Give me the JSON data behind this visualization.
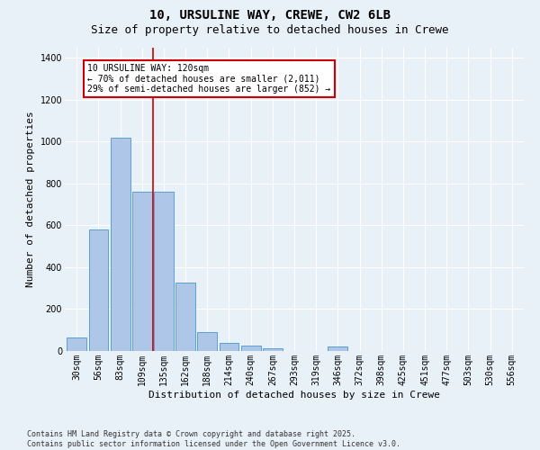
{
  "title1": "10, URSULINE WAY, CREWE, CW2 6LB",
  "title2": "Size of property relative to detached houses in Crewe",
  "xlabel": "Distribution of detached houses by size in Crewe",
  "ylabel": "Number of detached properties",
  "categories": [
    "30sqm",
    "56sqm",
    "83sqm",
    "109sqm",
    "135sqm",
    "162sqm",
    "188sqm",
    "214sqm",
    "240sqm",
    "267sqm",
    "293sqm",
    "319sqm",
    "346sqm",
    "372sqm",
    "398sqm",
    "425sqm",
    "451sqm",
    "477sqm",
    "503sqm",
    "530sqm",
    "556sqm"
  ],
  "values": [
    65,
    578,
    1020,
    760,
    760,
    325,
    90,
    38,
    25,
    15,
    0,
    0,
    20,
    0,
    0,
    0,
    0,
    0,
    0,
    0,
    0
  ],
  "bar_color": "#aec6e8",
  "bar_edge_color": "#5a9fd4",
  "vline_color": "#cc0000",
  "annotation_text": "10 URSULINE WAY: 120sqm\n← 70% of detached houses are smaller (2,011)\n29% of semi-detached houses are larger (852) →",
  "annotation_box_color": "#cc0000",
  "background_color": "#e8f0f8",
  "grid_color": "#ffffff",
  "footer1": "Contains HM Land Registry data © Crown copyright and database right 2025.",
  "footer2": "Contains public sector information licensed under the Open Government Licence v3.0.",
  "ylim": [
    0,
    1450
  ],
  "yticks": [
    0,
    200,
    400,
    600,
    800,
    1000,
    1200,
    1400
  ],
  "title1_fontsize": 10,
  "title2_fontsize": 9,
  "ylabel_fontsize": 8,
  "xlabel_fontsize": 8,
  "tick_fontsize": 7,
  "footer_fontsize": 6,
  "annot_fontsize": 7
}
